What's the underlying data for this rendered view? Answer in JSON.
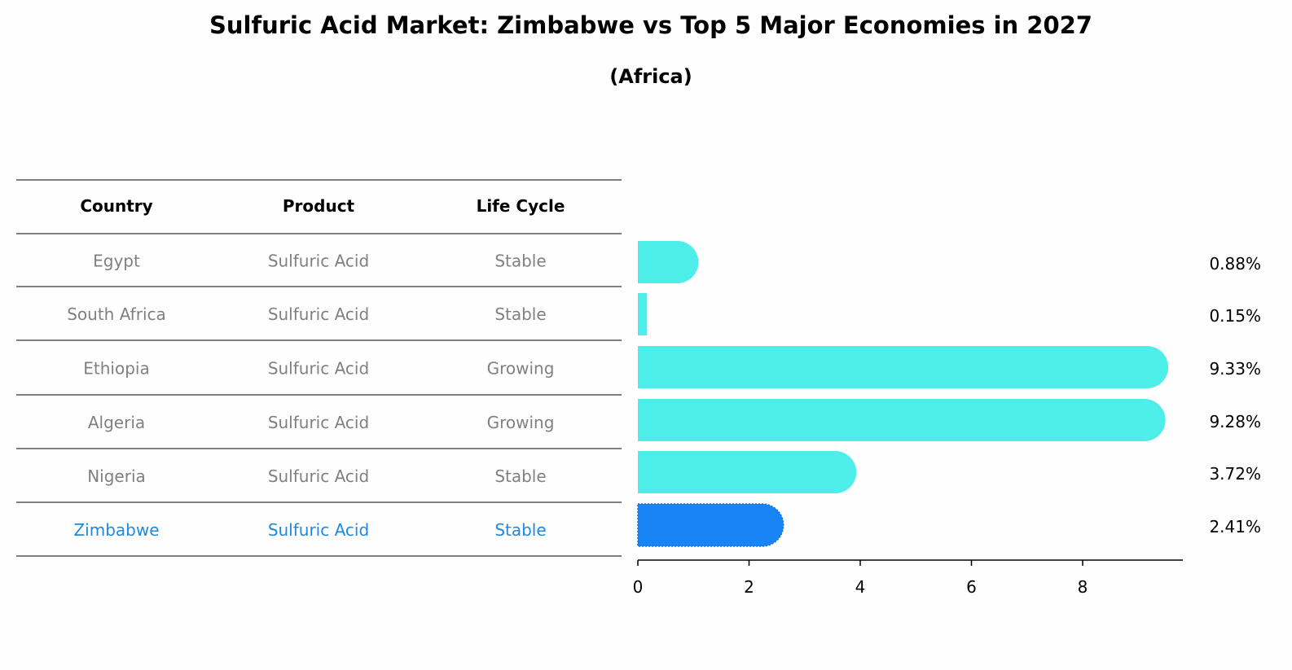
{
  "chart_data": {
    "type": "bar",
    "orientation": "horizontal",
    "title": "Sulfuric Acid Market: Zimbabwe vs Top 5 Major Economies in 2027",
    "subtitle": "(Africa)",
    "table": {
      "headers": [
        "Country",
        "Product",
        "Life Cycle"
      ],
      "rows": [
        [
          "Egypt",
          "Sulfuric Acid",
          "Stable"
        ],
        [
          "South Africa",
          "Sulfuric Acid",
          "Stable"
        ],
        [
          "Ethiopia",
          "Sulfuric Acid",
          "Growing"
        ],
        [
          "Algeria",
          "Sulfuric Acid",
          "Growing"
        ],
        [
          "Nigeria",
          "Sulfuric Acid",
          "Stable"
        ],
        [
          "Zimbabwe",
          "Sulfuric Acid",
          "Stable"
        ]
      ]
    },
    "categories": [
      "Egypt",
      "South Africa",
      "Ethiopia",
      "Algeria",
      "Nigeria",
      "Zimbabwe"
    ],
    "values": [
      0.88,
      0.15,
      9.33,
      9.28,
      3.72,
      2.41
    ],
    "value_labels": [
      "0.88%",
      "0.15%",
      "9.33%",
      "9.28%",
      "3.72%",
      "2.41%"
    ],
    "highlight": "Zimbabwe",
    "xticks": [
      "0",
      "2",
      "4",
      "6",
      "8"
    ],
    "xlim": [
      0,
      9.8
    ],
    "xlabel": "",
    "ylabel": "",
    "grid": false,
    "colors": {
      "bar": "#4deee9",
      "highlight": "#1984f5",
      "highlight_text": "#1f88e0",
      "text_muted": "#808080"
    }
  }
}
